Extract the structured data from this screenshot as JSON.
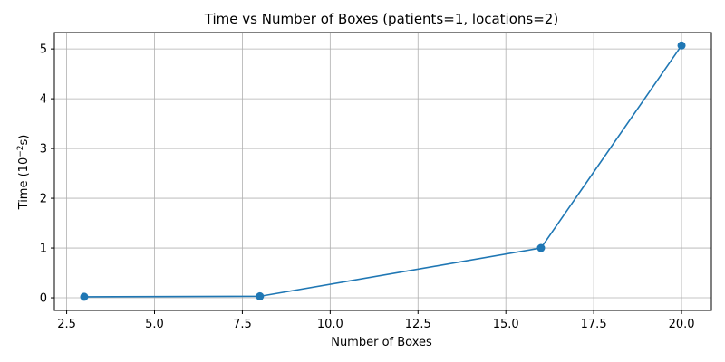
{
  "chart_data": {
    "type": "line",
    "title": "Time vs Number of Boxes (patients=1, locations=2)",
    "xlabel": "Number of Boxes",
    "ylabel_prefix": "Time (10",
    "ylabel_exp": "−2",
    "ylabel_suffix": "s)",
    "xlim": [
      2.15,
      20.85
    ],
    "ylim": [
      -0.254,
      5.33
    ],
    "x_ticks": [
      2.5,
      5.0,
      7.5,
      10.0,
      12.5,
      15.0,
      17.5,
      20.0
    ],
    "x_tick_labels": [
      "2.5",
      "5.0",
      "7.5",
      "10.0",
      "12.5",
      "15.0",
      "17.5",
      "20.0"
    ],
    "y_ticks": [
      0,
      1,
      2,
      3,
      4,
      5
    ],
    "y_tick_labels": [
      "0",
      "1",
      "2",
      "3",
      "4",
      "5"
    ],
    "grid": true,
    "series": [
      {
        "color": "#1f77b4",
        "x": [
          3,
          8,
          16,
          20
        ],
        "y": [
          0.02,
          0.03,
          1.0,
          5.07
        ]
      }
    ]
  }
}
